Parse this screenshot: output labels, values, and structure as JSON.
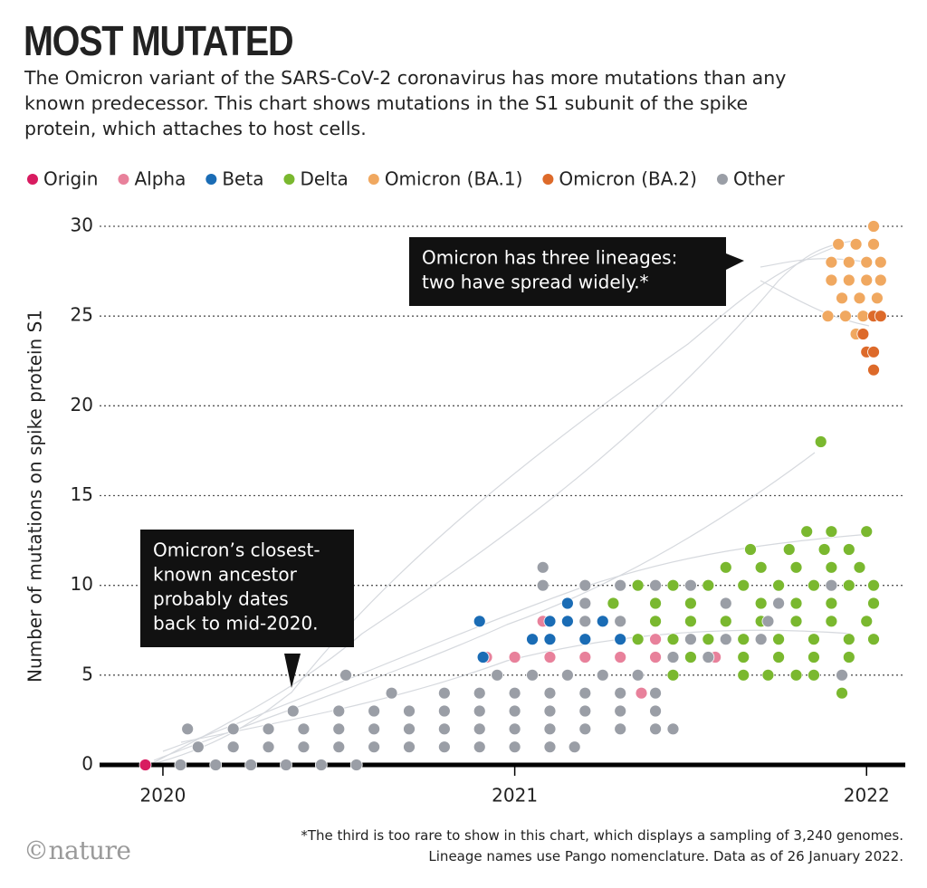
{
  "chart_data": {
    "type": "scatter",
    "title": "MOST MUTATED",
    "subtitle": "The Omicron variant of the SARS-CoV-2 coronavirus has more mutations than any known predecessor. This chart shows mutations in the S1 subunit of the spike protein, which attaches to host cells.",
    "y_label": "Number of mutations on spike protein S1",
    "xlim": [
      2019.82,
      2022.11
    ],
    "xticks": [
      2020,
      2021,
      2022
    ],
    "ylim": [
      0,
      30
    ],
    "yticks": [
      0,
      5,
      10,
      15,
      20,
      25,
      30
    ],
    "grid": true,
    "legend": "top",
    "annotations": [
      {
        "lines": [
          "Omicron has three lineages:",
          "two have spread widely.*"
        ]
      },
      {
        "lines": [
          "Omicron’s closest-",
          "known ancestor",
          "probably dates",
          "back to mid-2020."
        ]
      }
    ],
    "footnote": "*The third is too rare to show in this chart, which displays a sampling of 3,240 genomes. Lineage names use Pango nomenclature. Data as of 26 January 2022.",
    "source": "©nature",
    "series": [
      {
        "name": "Origin",
        "color": "#d81b60",
        "x": [
          2019.95
        ],
        "values": [
          0
        ]
      },
      {
        "name": "Alpha",
        "color": "#e8819b",
        "x": [
          2020.92,
          2021.0,
          2021.1,
          2021.2,
          2021.3,
          2021.4,
          2021.5,
          2021.57,
          2021.2,
          2021.3,
          2021.4,
          2021.08,
          2021.36
        ],
        "values": [
          6,
          6,
          6,
          6,
          6,
          6,
          6,
          6,
          7,
          7,
          7,
          8,
          4
        ]
      },
      {
        "name": "Beta",
        "color": "#1a6cb5",
        "x": [
          2020.9,
          2021.1,
          2021.15,
          2021.25,
          2021.05,
          2021.1,
          2021.2,
          2021.3,
          2021.15,
          2020.91
        ],
        "values": [
          8,
          8,
          8,
          8,
          7,
          7,
          7,
          7,
          9,
          6
        ]
      },
      {
        "name": "Delta",
        "color": "#7ab82f",
        "x": [
          2021.93,
          2021.45,
          2021.65,
          2021.72,
          2021.8,
          2021.85,
          2021.5,
          2021.65,
          2021.75,
          2021.85,
          2021.95,
          2021.35,
          2021.45,
          2021.55,
          2021.65,
          2021.75,
          2021.85,
          2021.95,
          2022.02,
          2021.3,
          2021.4,
          2021.5,
          2021.6,
          2021.7,
          2021.8,
          2021.9,
          2022.0,
          2021.28,
          2021.4,
          2021.5,
          2021.6,
          2021.7,
          2021.8,
          2021.9,
          2022.02,
          2021.35,
          2021.45,
          2021.55,
          2021.65,
          2021.75,
          2021.85,
          2021.95,
          2022.02,
          2021.6,
          2021.7,
          2021.8,
          2021.9,
          2021.98,
          2021.67,
          2021.78,
          2021.88,
          2021.95,
          2021.83,
          2021.9,
          2022.0,
          2021.87
        ],
        "values": [
          4,
          5,
          5,
          5,
          5,
          5,
          6,
          6,
          6,
          6,
          6,
          7,
          7,
          7,
          7,
          7,
          7,
          7,
          7,
          8,
          8,
          8,
          8,
          8,
          8,
          8,
          8,
          9,
          9,
          9,
          9,
          9,
          9,
          9,
          9,
          10,
          10,
          10,
          10,
          10,
          10,
          10,
          10,
          11,
          11,
          11,
          11,
          11,
          12,
          12,
          12,
          12,
          13,
          13,
          13,
          18
        ]
      },
      {
        "name": "Omicron (BA.1)",
        "color": "#f0a860",
        "x": [
          2022.02,
          2021.92,
          2021.97,
          2022.02,
          2021.9,
          2021.95,
          2022.0,
          2022.04,
          2021.9,
          2021.95,
          2022.0,
          2022.04,
          2021.93,
          2021.98,
          2022.03,
          2021.89,
          2021.94,
          2021.99,
          2021.97
        ],
        "values": [
          30,
          29,
          29,
          29,
          28,
          28,
          28,
          28,
          27,
          27,
          27,
          27,
          26,
          26,
          26,
          25,
          25,
          25,
          24
        ]
      },
      {
        "name": "Omicron (BA.2)",
        "color": "#dd6a2a",
        "x": [
          2022.02,
          2022.04,
          2021.99,
          2022.0,
          2022.02,
          2022.02
        ],
        "values": [
          25,
          25,
          24,
          23,
          23,
          22
        ]
      },
      {
        "name": "Other",
        "color": "#9a9ea6",
        "x": [
          2020.05,
          2020.15,
          2020.25,
          2020.35,
          2020.45,
          2020.55,
          2020.1,
          2020.2,
          2020.3,
          2020.4,
          2020.5,
          2020.6,
          2020.7,
          2020.8,
          2020.9,
          2021.0,
          2021.1,
          2021.17,
          2020.07,
          2020.2,
          2020.3,
          2020.4,
          2020.5,
          2020.6,
          2020.7,
          2020.8,
          2020.9,
          2021.0,
          2021.1,
          2021.2,
          2021.3,
          2021.4,
          2021.45,
          2020.37,
          2020.5,
          2020.6,
          2020.7,
          2020.8,
          2020.9,
          2021.0,
          2021.1,
          2021.2,
          2021.3,
          2021.4,
          2020.65,
          2020.8,
          2020.9,
          2021.0,
          2021.1,
          2021.2,
          2021.3,
          2021.4,
          2020.52,
          2020.95,
          2021.05,
          2021.15,
          2021.25,
          2021.35,
          2021.93,
          2021.45,
          2021.55,
          2021.5,
          2021.6,
          2021.7,
          2021.2,
          2021.3,
          2021.72,
          2021.2,
          2021.6,
          2021.75,
          2021.08,
          2021.2,
          2021.3,
          2021.4,
          2021.5,
          2021.9,
          2021.08
        ],
        "values": [
          0,
          0,
          0,
          0,
          0,
          0,
          1,
          1,
          1,
          1,
          1,
          1,
          1,
          1,
          1,
          1,
          1,
          1,
          2,
          2,
          2,
          2,
          2,
          2,
          2,
          2,
          2,
          2,
          2,
          2,
          2,
          2,
          2,
          3,
          3,
          3,
          3,
          3,
          3,
          3,
          3,
          3,
          3,
          3,
          4,
          4,
          4,
          4,
          4,
          4,
          4,
          4,
          5,
          5,
          5,
          5,
          5,
          5,
          5,
          6,
          6,
          7,
          7,
          7,
          8,
          8,
          8,
          9,
          9,
          9,
          10,
          10,
          10,
          10,
          10,
          10,
          11
        ]
      }
    ]
  }
}
